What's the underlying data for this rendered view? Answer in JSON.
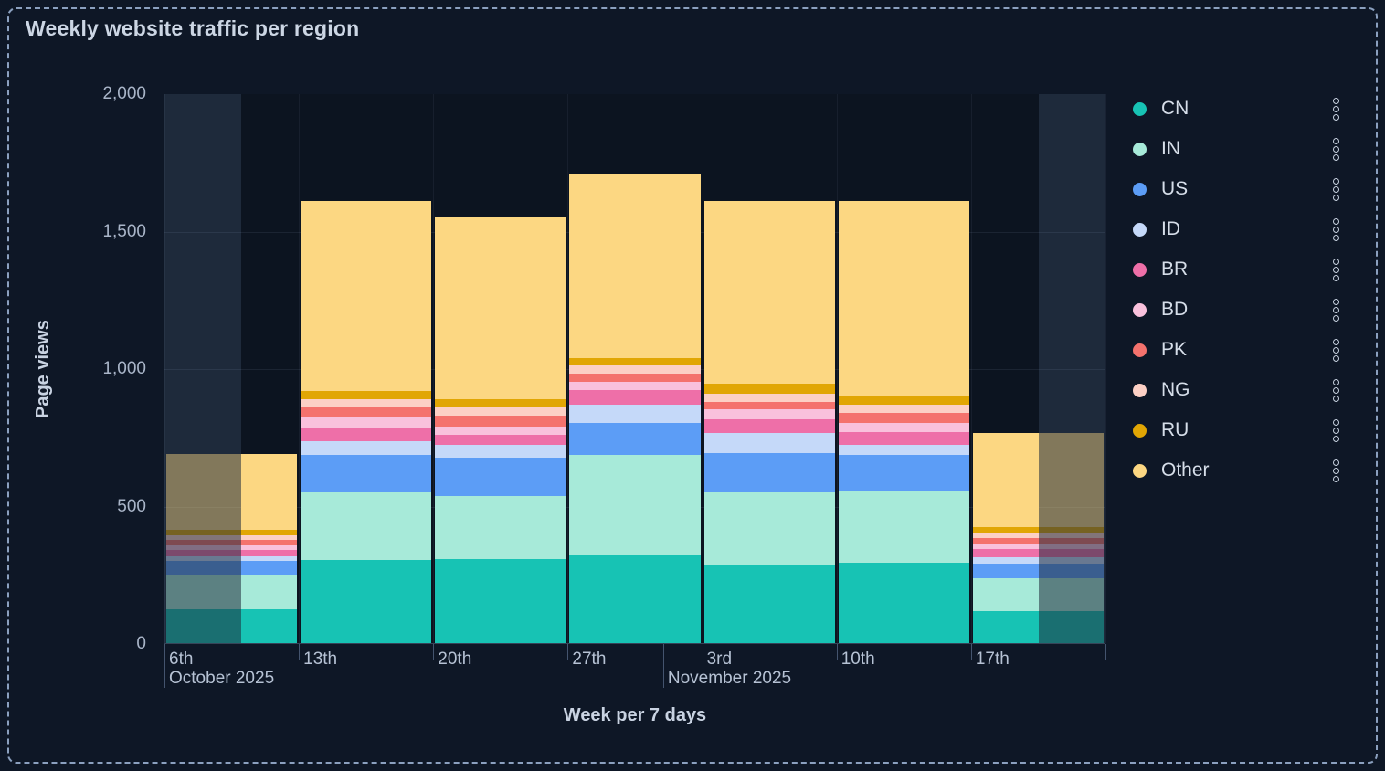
{
  "title": "Weekly website traffic per region",
  "y_axis": {
    "title": "Page views",
    "ticks": [
      "0",
      "500",
      "1,000",
      "1,500",
      "2,000"
    ]
  },
  "x_axis": {
    "title": "Week per 7 days",
    "categories": [
      "6th",
      "13th",
      "20th",
      "27th",
      "3rd",
      "10th",
      "17th"
    ],
    "months": [
      {
        "label": "October 2025",
        "week_position": 0
      },
      {
        "label": "November 2025",
        "week_position": 3.71
      }
    ]
  },
  "legend": {
    "position": "right",
    "menu_icon": "kebab-vertical-dots"
  },
  "brush": {
    "selected_start_week": 0.571,
    "selected_end_week": 6.504,
    "dim_opacity": 0.45
  },
  "chart_data": {
    "type": "bar",
    "stacked": true,
    "title": "Weekly website traffic per region",
    "xlabel": "Week per 7 days",
    "ylabel": "Page views",
    "ylim": [
      0,
      2000
    ],
    "grid": true,
    "legend_position": "right",
    "categories": [
      "6th Oct 2025",
      "13th Oct 2025",
      "20th Oct 2025",
      "27th Oct 2025",
      "3rd Nov 2025",
      "10th Nov 2025",
      "17th Nov 2025"
    ],
    "series": [
      {
        "name": "CN",
        "color": "#17c3b4",
        "values": [
          124,
          302,
          306,
          319,
          282,
          292,
          116
        ]
      },
      {
        "name": "IN",
        "color": "#a7ead9",
        "values": [
          125,
          246,
          229,
          365,
          266,
          262,
          120
        ]
      },
      {
        "name": "US",
        "color": "#5c9df6",
        "values": [
          51,
          136,
          140,
          116,
          143,
          130,
          53
        ]
      },
      {
        "name": "ID",
        "color": "#c5d9f9",
        "values": [
          16,
          50,
          47,
          66,
          73,
          37,
          23
        ]
      },
      {
        "name": "BR",
        "color": "#ee6fa8",
        "values": [
          24,
          47,
          37,
          53,
          50,
          47,
          30
        ]
      },
      {
        "name": "BD",
        "color": "#f9c1dc",
        "values": [
          15,
          40,
          30,
          33,
          37,
          33,
          17
        ]
      },
      {
        "name": "PK",
        "color": "#f4726d",
        "values": [
          19,
          37,
          40,
          27,
          27,
          37,
          23
        ]
      },
      {
        "name": "NG",
        "color": "#fcd0c5",
        "values": [
          18,
          30,
          33,
          30,
          30,
          30,
          20
        ]
      },
      {
        "name": "RU",
        "color": "#e1a604",
        "values": [
          19,
          30,
          27,
          27,
          37,
          33,
          20
        ]
      },
      {
        "name": "Other",
        "color": "#fcd782",
        "values": [
          277,
          691,
          664,
          671,
          664,
          708,
          342
        ]
      }
    ],
    "totals": [
      688,
      1609,
      1553,
      1707,
      1609,
      1609,
      764
    ]
  }
}
